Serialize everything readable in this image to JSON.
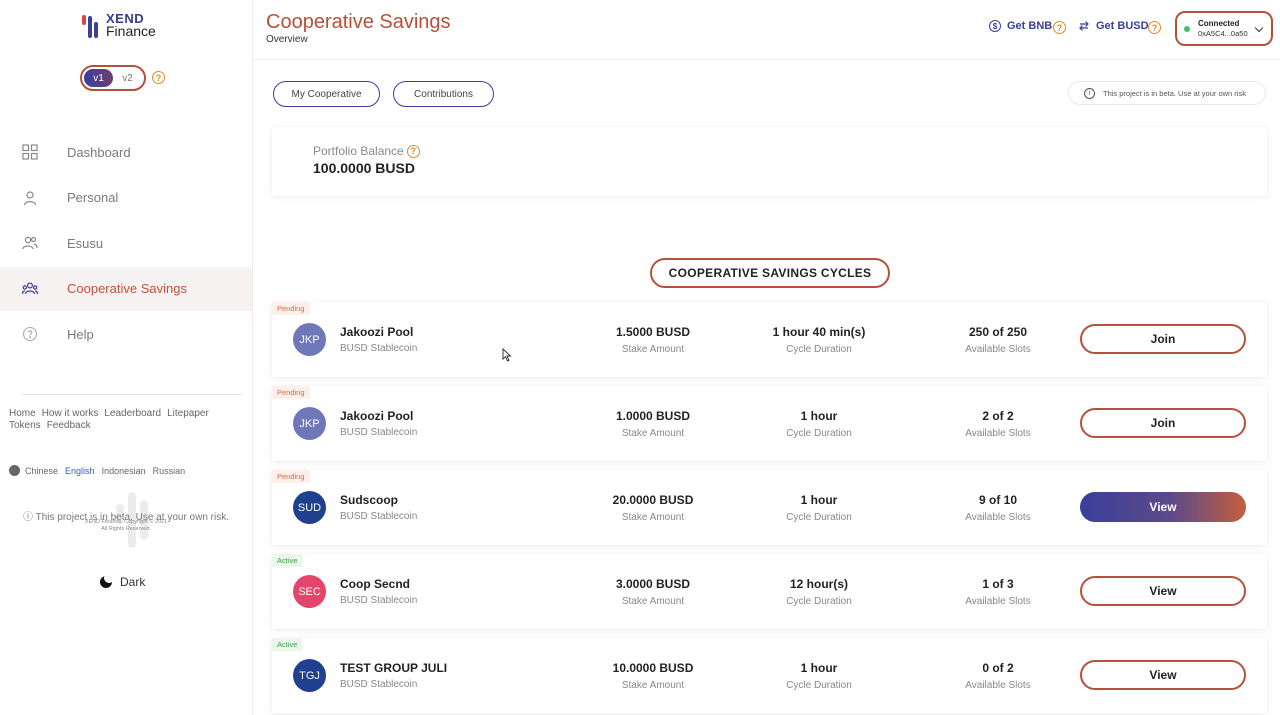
{
  "brand": {
    "line1": "XEND",
    "line2": "Finance"
  },
  "version_toggle": {
    "options": [
      "v1",
      "v2"
    ],
    "selected": "v1"
  },
  "sidebar": {
    "items": [
      {
        "label": "Dashboard",
        "icon": "dashboard-grid-icon"
      },
      {
        "label": "Personal",
        "icon": "user-icon"
      },
      {
        "label": "Esusu",
        "icon": "users-icon"
      },
      {
        "label": "Cooperative Savings",
        "icon": "group-icon",
        "active": true
      },
      {
        "label": "Help",
        "icon": "help-circle-icon"
      }
    ],
    "footer_links": [
      "Home",
      "How it works",
      "Leaderboard",
      "Litepaper",
      "Tokens",
      "Feedback"
    ],
    "languages": [
      "Chinese",
      "English",
      "Indonesian",
      "Russian"
    ],
    "current_language": "English",
    "beta_notice": "This project is in beta. Use at your own risk.",
    "copyright_line1": "XEND Finance, Copyright © 2021",
    "copyright_line2": "All Rights Reserved.",
    "theme_label": "Dark"
  },
  "header": {
    "title": "Cooperative Savings",
    "subtitle": "Overview",
    "get_bnb": "Get BNB",
    "get_busd": "Get BUSD",
    "wallet_status": "Connected",
    "wallet_address": "0xA5C4...0a50"
  },
  "main": {
    "tabs": [
      "My Cooperative",
      "Contributions"
    ],
    "beta_notice": "This project is in beta. Use at your own risk",
    "portfolio_label": "Portfolio Balance",
    "portfolio_value": "100.0000 BUSD",
    "cycles_title": "COOPERATIVE SAVINGS CYCLES",
    "stat_labels": {
      "stake": "Stake Amount",
      "duration": "Cycle Duration",
      "slots": "Available Slots"
    },
    "pools": [
      {
        "status": "Pending",
        "initials": "JKP",
        "color": "#6e78b8",
        "name": "Jakoozi Pool",
        "token": "BUSD Stablecoin",
        "stake": "1.5000 BUSD",
        "duration": "1 hour 40 min(s)",
        "slots": "250 of 250",
        "action": "Join",
        "filled": false
      },
      {
        "status": "Pending",
        "initials": "JKP",
        "color": "#6e78b8",
        "name": "Jakoozi Pool",
        "token": "BUSD Stablecoin",
        "stake": "1.0000 BUSD",
        "duration": "1 hour",
        "slots": "2 of 2",
        "action": "Join",
        "filled": false
      },
      {
        "status": "Pending",
        "initials": "SUD",
        "color": "#1f3f8f",
        "name": "Sudscoop",
        "token": "BUSD Stablecoin",
        "stake": "20.0000 BUSD",
        "duration": "1 hour",
        "slots": "9 of 10",
        "action": "View",
        "filled": true
      },
      {
        "status": "Active",
        "initials": "SEC",
        "color": "#e5456b",
        "name": "Coop Secnd",
        "token": "BUSD Stablecoin",
        "stake": "3.0000 BUSD",
        "duration": "12 hour(s)",
        "slots": "1 of 3",
        "action": "View",
        "filled": false
      },
      {
        "status": "Active",
        "initials": "TGJ",
        "color": "#1f3f8f",
        "name": "TEST GROUP JULI",
        "token": "BUSD Stablecoin",
        "stake": "10.0000 BUSD",
        "duration": "1 hour",
        "slots": "0 of 2",
        "action": "View",
        "filled": false
      }
    ]
  }
}
